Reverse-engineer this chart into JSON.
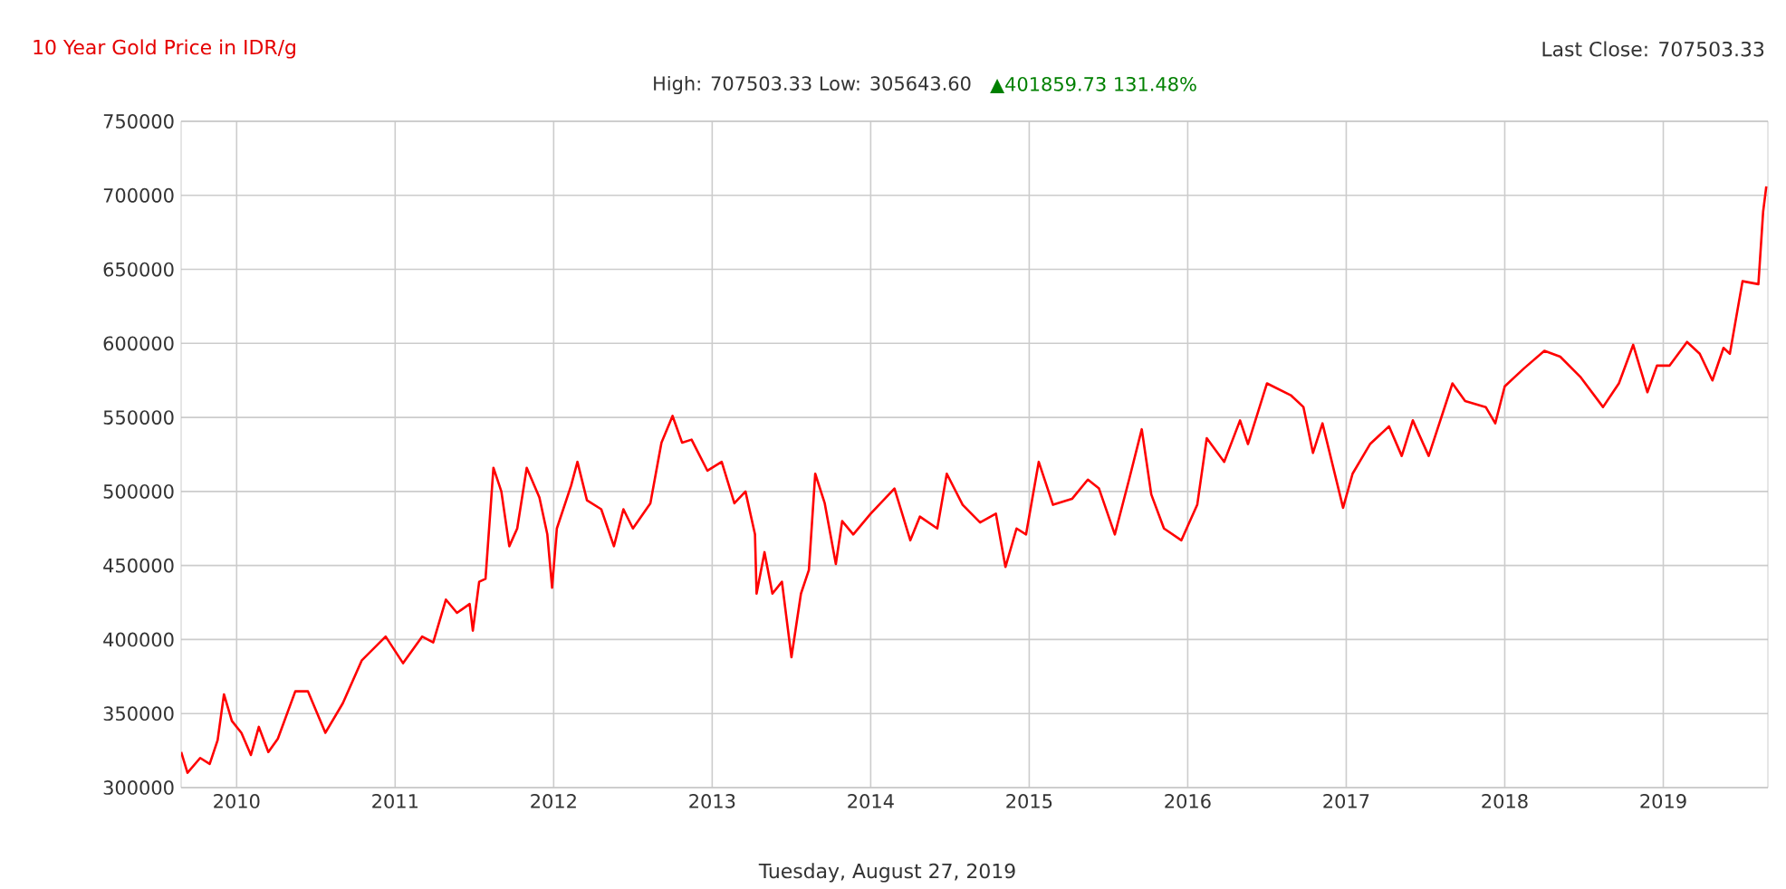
{
  "chart_data": {
    "type": "line",
    "title": "10 Year Gold Price in IDR/g",
    "subtitle": "High: 707503.33 Low: 305643.60",
    "annotations": [
      "Last Close: 707503.33",
      "▲401859.73 131.48%",
      "Tuesday, August 27, 2019"
    ],
    "xlim": [
      2009.65,
      2019.66
    ],
    "xticks": [
      2010,
      2011,
      2012,
      2013,
      2014,
      2015,
      2016,
      2017,
      2018,
      2019
    ],
    "ylim": [
      300000,
      750000
    ],
    "yticks": [
      300000,
      350000,
      400000,
      450000,
      500000,
      550000,
      600000,
      650000,
      700000,
      750000
    ],
    "grid": true,
    "series": [
      {
        "color": "#ff0000",
        "x": [
          2009.65,
          2009.69,
          2009.77,
          2009.83,
          2009.88,
          2009.92,
          2009.97,
          2010.03,
          2010.09,
          2010.14,
          2010.2,
          2010.26,
          2010.37,
          2010.45,
          2010.56,
          2010.67,
          2010.79,
          2010.94,
          2011.05,
          2011.17,
          2011.24,
          2011.32,
          2011.39,
          2011.47,
          2011.49,
          2011.53,
          2011.57,
          2011.62,
          2011.67,
          2011.72,
          2011.77,
          2011.83,
          2011.91,
          2011.96,
          2011.99,
          2012.02,
          2012.11,
          2012.15,
          2012.21,
          2012.3,
          2012.38,
          2012.44,
          2012.5,
          2012.61,
          2012.68,
          2012.75,
          2012.81,
          2012.87,
          2012.97,
          2013.06,
          2013.14,
          2013.21,
          2013.27,
          2013.28,
          2013.33,
          2013.38,
          2013.44,
          2013.5,
          2013.56,
          2013.61,
          2013.65,
          2013.71,
          2013.78,
          2013.82,
          2013.89,
          2014.0,
          2014.15,
          2014.25,
          2014.31,
          2014.42,
          2014.48,
          2014.58,
          2014.69,
          2014.79,
          2014.85,
          2014.92,
          2014.98,
          2015.06,
          2015.15,
          2015.27,
          2015.37,
          2015.44,
          2015.54,
          2015.63,
          2015.71,
          2015.77,
          2015.85,
          2015.96,
          2016.06,
          2016.12,
          2016.23,
          2016.33,
          2016.38,
          2016.5,
          2016.65,
          2016.73,
          2016.79,
          2016.85,
          2016.98,
          2017.04,
          2017.15,
          2017.27,
          2017.35,
          2017.42,
          2017.52,
          2017.67,
          2017.75,
          2017.88,
          2017.94,
          2018.0,
          2018.12,
          2018.25,
          2018.35,
          2018.48,
          2018.62,
          2018.72,
          2018.81,
          2018.9,
          2018.96,
          2019.04,
          2019.15,
          2019.23,
          2019.31,
          2019.38,
          2019.42,
          2019.5,
          2019.6,
          2019.63,
          2019.65
        ],
        "values": [
          324000,
          310000,
          320000,
          316000,
          332000,
          363000,
          345000,
          337000,
          322000,
          341000,
          324000,
          333000,
          365000,
          365000,
          337000,
          357000,
          386000,
          402000,
          384000,
          402000,
          398000,
          427000,
          418000,
          424000,
          406000,
          439000,
          441000,
          516000,
          500000,
          463000,
          475000,
          516000,
          496000,
          471000,
          435000,
          475000,
          504000,
          520000,
          494000,
          488000,
          463000,
          488000,
          475000,
          492000,
          533000,
          551000,
          533000,
          535000,
          514000,
          520000,
          492000,
          500000,
          471000,
          431000,
          459000,
          431000,
          439000,
          388000,
          431000,
          447000,
          512000,
          492000,
          451000,
          480000,
          471000,
          485000,
          502000,
          467000,
          483000,
          475000,
          512000,
          491000,
          479000,
          485000,
          449000,
          475000,
          471000,
          520000,
          491000,
          495000,
          508000,
          502000,
          471000,
          508000,
          542000,
          498000,
          475000,
          467000,
          491000,
          536000,
          520000,
          548000,
          532000,
          573000,
          565000,
          557000,
          526000,
          546000,
          489000,
          512000,
          532000,
          544000,
          524000,
          548000,
          524000,
          573000,
          561000,
          557000,
          546000,
          571000,
          583000,
          595000,
          591000,
          577000,
          557000,
          573000,
          599000,
          567000,
          585000,
          585000,
          601000,
          593000,
          575000,
          597000,
          593000,
          642000,
          640000,
          689000,
          706000
        ]
      }
    ]
  }
}
